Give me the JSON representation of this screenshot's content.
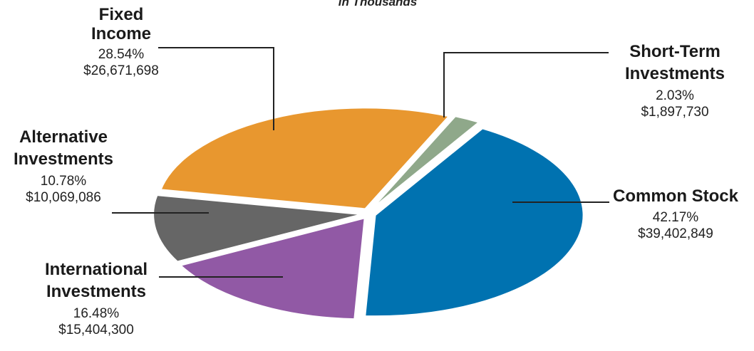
{
  "chart_data": {
    "type": "pie",
    "subtitle": "in Thousands",
    "slices": [
      {
        "name": "Common Stock",
        "percent": "42.17%",
        "value": "$39,402,849",
        "color": "#0072b0"
      },
      {
        "name": "International Investments",
        "percent": "16.48%",
        "value": "$15,404,300",
        "color": "#9159a5"
      },
      {
        "name": "Alternative Investments",
        "percent": "10.78%",
        "value": "$10,069,086",
        "color": "#666666"
      },
      {
        "name": "Fixed Income",
        "percent": "28.54%",
        "value": "$26,671,698",
        "color": "#e8972f"
      },
      {
        "name": "Short-Term Investments",
        "percent": "2.03%",
        "value": "$1,897,730",
        "color": "#8fa88a"
      }
    ]
  },
  "labels": {
    "fixed_income": {
      "line1": "Fixed",
      "line2": "Income",
      "pct": "28.54%",
      "amt": "$26,671,698"
    },
    "short_term": {
      "line1": "Short-Term",
      "line2": "Investments",
      "pct": "2.03%",
      "amt": "$1,897,730"
    },
    "alternative": {
      "line1": "Alternative",
      "line2": "Investments",
      "pct": "10.78%",
      "amt": "$10,069,086"
    },
    "common_stock": {
      "line1": "Common Stock",
      "pct": "42.17%",
      "amt": "$39,402,849"
    },
    "international": {
      "line1": "International",
      "line2": "Investments",
      "pct": "16.48%",
      "amt": "$15,404,300"
    }
  }
}
